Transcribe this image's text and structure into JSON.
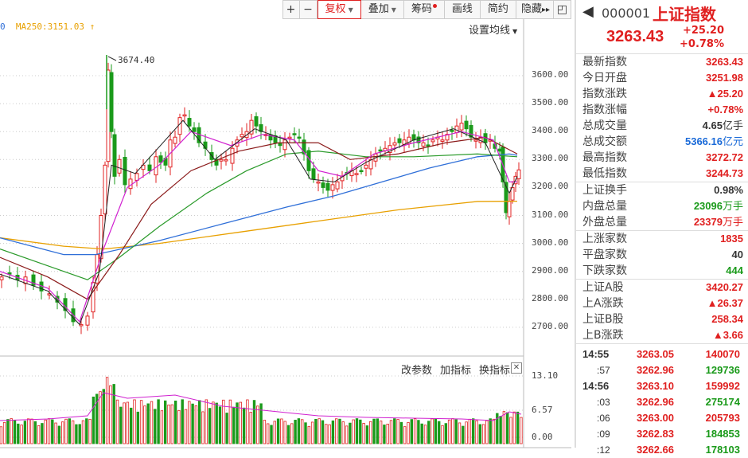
{
  "toolbar": {
    "zoom_in": "+",
    "zoom_out": "−",
    "adjust": "复权",
    "overlay": "叠加",
    "chips": "筹码",
    "draw": "画线",
    "summary": "简约",
    "hide": "隐藏",
    "expand": "▸▸",
    "collapse": "◰"
  },
  "legend": {
    "left_fragment": "0",
    "ma250": "MA250:3151.03",
    "arrow": "↑",
    "settings": "设置均线"
  },
  "annotation": {
    "peak": "3674.40"
  },
  "price_axis": [
    "3600.00",
    "3500.00",
    "3400.00",
    "3300.00",
    "3200.00",
    "3100.00",
    "3000.00",
    "2900.00",
    "2800.00",
    "2700.00"
  ],
  "volume_axis": [
    "13.10",
    "6.57",
    "0.00"
  ],
  "sub_toolbar": {
    "change_params": "改参数",
    "add_indicator": "加指标",
    "switch_indicator": "换指标",
    "close": "✕"
  },
  "quote": {
    "back": "◀",
    "code": "000001",
    "name": "上证指数",
    "price": "3263.43",
    "change": "+25.20",
    "change_pct": "+0.78%",
    "groups": [
      [
        {
          "k": "最新指数",
          "v": "3263.43",
          "c": "red"
        },
        {
          "k": "今日开盘",
          "v": "3251.98",
          "c": "red"
        },
        {
          "k": "指数涨跌",
          "v": "▲25.20",
          "c": "red"
        },
        {
          "k": "指数涨幅",
          "v": "+0.78%",
          "c": "red"
        },
        {
          "k": "总成交量",
          "v": "4.65",
          "u": "亿手",
          "c": "blk"
        },
        {
          "k": "总成交额",
          "v": "5366.16",
          "u": "亿元",
          "c": "blue"
        },
        {
          "k": "最高指数",
          "v": "3272.72",
          "c": "red"
        },
        {
          "k": "最低指数",
          "v": "3244.73",
          "c": "red"
        }
      ],
      [
        {
          "k": "上证换手",
          "v": "0.98%",
          "c": "blk"
        },
        {
          "k": "内盘总量",
          "v": "23096",
          "u": "万手",
          "c": "green"
        },
        {
          "k": "外盘总量",
          "v": "23379",
          "u": "万手",
          "c": "red"
        }
      ],
      [
        {
          "k": "上涨家数",
          "v": "1835",
          "c": "red"
        },
        {
          "k": "平盘家数",
          "v": "40",
          "c": "blk"
        },
        {
          "k": "下跌家数",
          "v": "444",
          "c": "green"
        }
      ],
      [
        {
          "k": "上证A股",
          "v": "3420.27",
          "c": "red"
        },
        {
          "k": "上A涨跌",
          "v": "▲26.37",
          "c": "red"
        },
        {
          "k": "上证B股",
          "v": "258.34",
          "c": "red"
        },
        {
          "k": "上B涨跌",
          "v": "▲3.66",
          "c": "red"
        }
      ]
    ],
    "trades": [
      {
        "t": "14:55",
        "sub": false,
        "p": "3263.05",
        "v": "140070",
        "c": "red"
      },
      {
        "t": ":57",
        "sub": true,
        "p": "3262.96",
        "v": "129736",
        "c": "green"
      },
      {
        "t": "14:56",
        "sub": false,
        "p": "3263.10",
        "v": "159992",
        "c": "red"
      },
      {
        "t": ":03",
        "sub": true,
        "p": "3262.96",
        "v": "275174",
        "c": "green"
      },
      {
        "t": ":06",
        "sub": true,
        "p": "3263.00",
        "v": "205793",
        "c": "red"
      },
      {
        "t": ":09",
        "sub": true,
        "p": "3262.83",
        "v": "184853",
        "c": "green"
      },
      {
        "t": ":12",
        "sub": true,
        "p": "3262.66",
        "v": "178103",
        "c": "green"
      }
    ]
  },
  "colors": {
    "up": "#e02020",
    "down": "#1a9a1a",
    "ma250": "#e8a000",
    "ma120": "#2f6fd8"
  }
}
